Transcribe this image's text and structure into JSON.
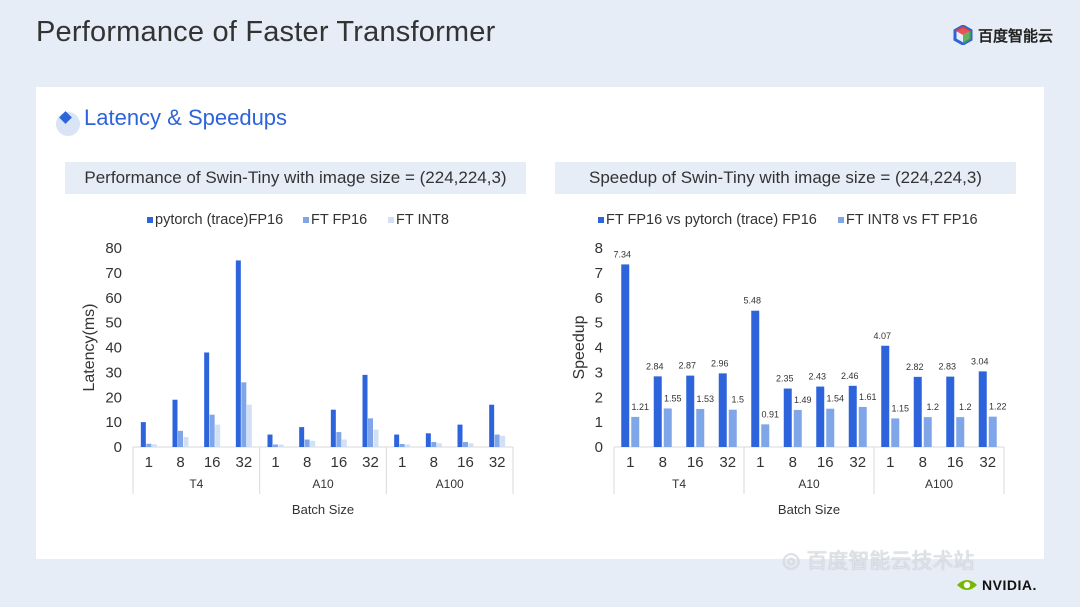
{
  "slide": {
    "title": "Performance of Faster Transformer",
    "logo_text": "百度智能云",
    "section_title": "Latency & Speedups",
    "watermark_text": "百度智能云技术站",
    "nvidia_text": "NVIDIA."
  },
  "colors": {
    "primary": "#2d64dc",
    "medium": "#7ea6e8",
    "light": "#d2e0f5",
    "background": "#e6edf6"
  },
  "chart_data": [
    {
      "type": "bar",
      "title": "Performance of Swin-Tiny with image size = (224,224,3)",
      "xlabel": "Batch Size",
      "ylabel": "Latency(ms)",
      "ylim": [
        0,
        80
      ],
      "yticks": [
        "0",
        "10",
        "20",
        "30",
        "40",
        "50",
        "60",
        "70",
        "80"
      ],
      "groups": [
        "T4",
        "A10",
        "A100"
      ],
      "categories": [
        "1",
        "8",
        "16",
        "32",
        "1",
        "8",
        "16",
        "32",
        "1",
        "8",
        "16",
        "32"
      ],
      "legend_position": "top",
      "series": [
        {
          "name": "pytorch (trace)FP16",
          "color": "#2d64dc",
          "values": [
            10,
            19,
            38,
            75,
            5,
            8,
            15,
            29,
            5,
            5.5,
            9,
            17
          ]
        },
        {
          "name": "FT FP16",
          "color": "#7ea6e8",
          "values": [
            1.3,
            6.5,
            13,
            26,
            1,
            3,
            6,
            11.5,
            1.2,
            2,
            2,
            5
          ]
        },
        {
          "name": "FT INT8",
          "color": "#d2e0f5",
          "values": [
            1.1,
            4,
            9,
            17,
            1,
            2.5,
            3,
            7,
            1,
            1.5,
            1.5,
            4.5
          ]
        }
      ]
    },
    {
      "type": "bar",
      "title": "Speedup of Swin-Tiny with image size = (224,224,3)",
      "xlabel": "Batch Size",
      "ylabel": "Speedup",
      "ylim": [
        0,
        8
      ],
      "yticks": [
        "0",
        "1",
        "2",
        "3",
        "4",
        "5",
        "6",
        "7",
        "8"
      ],
      "groups": [
        "T4",
        "A10",
        "A100"
      ],
      "categories": [
        "1",
        "8",
        "16",
        "32",
        "1",
        "8",
        "16",
        "32",
        "1",
        "8",
        "16",
        "32"
      ],
      "legend_position": "top",
      "data_labels": true,
      "series": [
        {
          "name": "FT FP16 vs pytorch (trace) FP16",
          "color": "#2d64dc",
          "values": [
            7.34,
            2.84,
            2.87,
            2.96,
            5.48,
            2.35,
            2.43,
            2.46,
            4.07,
            2.82,
            2.83,
            3.04
          ]
        },
        {
          "name": "FT INT8 vs FT FP16",
          "color": "#7ea6e8",
          "values": [
            1.21,
            1.55,
            1.53,
            1.5,
            0.91,
            1.49,
            1.54,
            1.61,
            1.15,
            1.2,
            1.2,
            1.22
          ]
        }
      ]
    }
  ]
}
